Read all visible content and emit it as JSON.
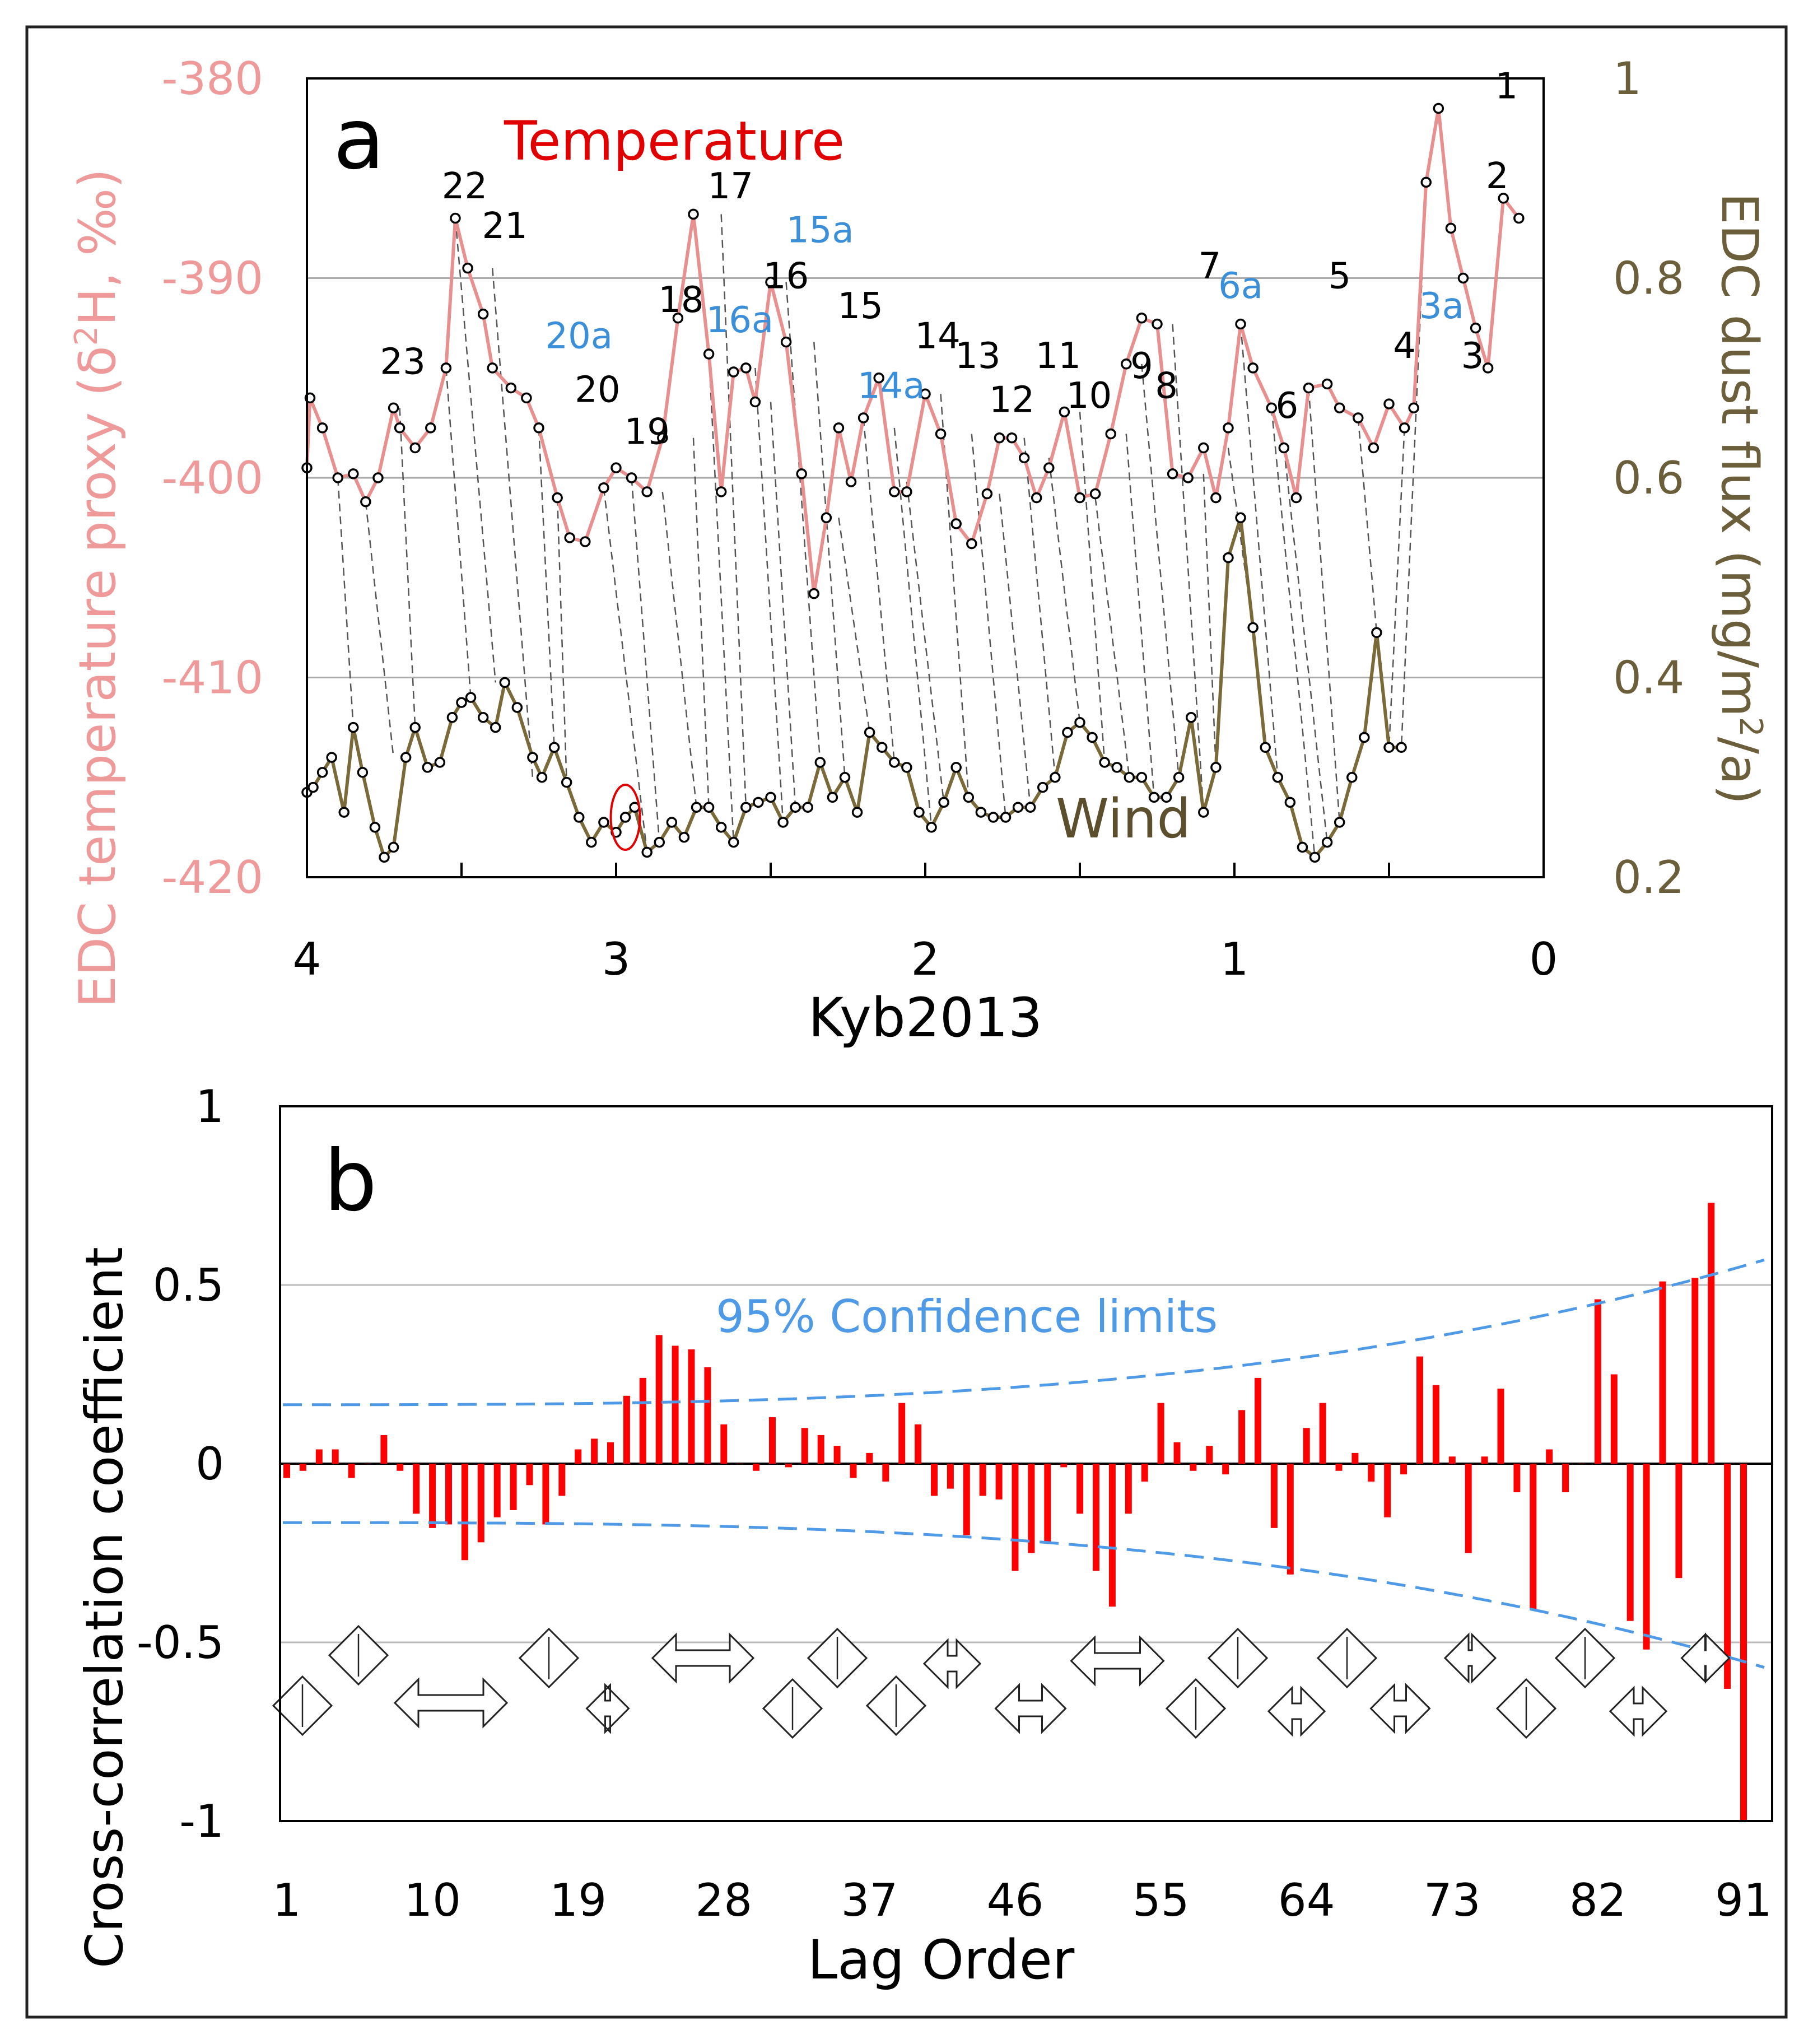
{
  "chart_data": [
    {
      "panel": "a",
      "type": "line",
      "panel_label": "a",
      "xlabel": "Kyb2013",
      "x_ticks": [
        "4",
        "3",
        "2",
        "1",
        "0"
      ],
      "xlim": [
        4,
        0
      ],
      "y_left_label": "EDC temperature proxy (δ²H, ‰)",
      "y_left_ticks": [
        "-380",
        "-390",
        "-400",
        "-410",
        "-420"
      ],
      "ylim_left": [
        -420,
        -380
      ],
      "y_right_label": "EDC dust flux (mg/m²/a)",
      "y_right_ticks": [
        "1",
        "0.8",
        "0.6",
        "0.4",
        "0.2"
      ],
      "ylim_right": [
        0.2,
        1
      ],
      "grid": true,
      "colors": {
        "temperature": "#e89090",
        "wind": "#7a6a3a",
        "marker": "#000000",
        "label_blue": "#3a8fd8",
        "label_black": "#000000",
        "highlight": "#e00000",
        "connector": "#555555",
        "left_axis": "#ef9a9a",
        "right_axis": "#6b5e3a"
      },
      "series": [
        {
          "name": "Temperature",
          "label": "Temperature",
          "axis": "left",
          "x": [
            4.0,
            3.99,
            3.95,
            3.9,
            3.85,
            3.81,
            3.77,
            3.72,
            3.7,
            3.65,
            3.6,
            3.55,
            3.52,
            3.48,
            3.43,
            3.4,
            3.34,
            3.29,
            3.25,
            3.19,
            3.15,
            3.1,
            3.04,
            3.0,
            2.95,
            2.9,
            2.85,
            2.8,
            2.75,
            2.7,
            2.66,
            2.62,
            2.58,
            2.55,
            2.5,
            2.45,
            2.4,
            2.36,
            2.32,
            2.28,
            2.24,
            2.2,
            2.15,
            2.1,
            2.06,
            2.0,
            1.95,
            1.9,
            1.85,
            1.8,
            1.76,
            1.72,
            1.68,
            1.64,
            1.6,
            1.55,
            1.5,
            1.45,
            1.4,
            1.35,
            1.3,
            1.25,
            1.2,
            1.15,
            1.1,
            1.06,
            1.02,
            0.98,
            0.94,
            0.88,
            0.84,
            0.8,
            0.76,
            0.7,
            0.66,
            0.6,
            0.55,
            0.5,
            0.45,
            0.42,
            0.38,
            0.34,
            0.3,
            0.26,
            0.22,
            0.18,
            0.13,
            0.08
          ],
          "y": [
            -399.5,
            -396.0,
            -397.5,
            -400.0,
            -399.8,
            -401.2,
            -400.0,
            -396.5,
            -397.5,
            -398.5,
            -397.5,
            -394.5,
            -387.0,
            -389.5,
            -391.8,
            -394.5,
            -395.5,
            -396.0,
            -397.5,
            -401.0,
            -403.0,
            -403.2,
            -400.5,
            -399.5,
            -400.0,
            -400.7,
            -398.0,
            -392.0,
            -386.8,
            -393.8,
            -400.7,
            -394.7,
            -394.5,
            -396.2,
            -390.2,
            -393.2,
            -399.8,
            -405.8,
            -402.0,
            -397.5,
            -400.2,
            -397.0,
            -395.0,
            -400.7,
            -400.7,
            -395.8,
            -397.8,
            -402.3,
            -403.3,
            -400.8,
            -398.0,
            -398.0,
            -399.0,
            -401.0,
            -399.5,
            -396.7,
            -401.0,
            -400.8,
            -397.8,
            -394.3,
            -392.0,
            -392.3,
            -399.8,
            -400.0,
            -398.5,
            -401.0,
            -397.5,
            -392.3,
            -394.5,
            -396.5,
            -398.5,
            -401.0,
            -395.5,
            -395.3,
            -396.5,
            -397.0,
            -398.5,
            -396.3,
            -397.5,
            -396.5,
            -385.2,
            -381.5,
            -387.5,
            -390.0,
            -392.5,
            -394.5,
            -386.0,
            -387.0
          ]
        },
        {
          "name": "Wind",
          "label": "Wind",
          "axis": "right",
          "x": [
            4.0,
            3.98,
            3.95,
            3.92,
            3.88,
            3.85,
            3.82,
            3.78,
            3.75,
            3.72,
            3.68,
            3.65,
            3.61,
            3.57,
            3.53,
            3.5,
            3.47,
            3.43,
            3.39,
            3.36,
            3.32,
            3.27,
            3.24,
            3.2,
            3.16,
            3.12,
            3.08,
            3.04,
            3.0,
            2.97,
            2.94,
            2.9,
            2.86,
            2.82,
            2.78,
            2.74,
            2.7,
            2.66,
            2.62,
            2.58,
            2.54,
            2.5,
            2.46,
            2.42,
            2.38,
            2.34,
            2.3,
            2.26,
            2.22,
            2.18,
            2.14,
            2.1,
            2.06,
            2.02,
            1.98,
            1.94,
            1.9,
            1.86,
            1.82,
            1.78,
            1.74,
            1.7,
            1.66,
            1.62,
            1.58,
            1.54,
            1.5,
            1.46,
            1.42,
            1.38,
            1.34,
            1.3,
            1.26,
            1.22,
            1.18,
            1.14,
            1.1,
            1.06,
            1.02,
            0.98,
            0.94,
            0.9,
            0.86,
            0.82,
            0.78,
            0.74,
            0.7,
            0.66,
            0.62,
            0.58,
            0.54,
            0.5,
            0.46
          ],
          "y": [
            0.285,
            0.29,
            0.305,
            0.32,
            0.265,
            0.35,
            0.305,
            0.25,
            0.22,
            0.23,
            0.32,
            0.35,
            0.31,
            0.315,
            0.36,
            0.375,
            0.38,
            0.36,
            0.35,
            0.395,
            0.37,
            0.32,
            0.3,
            0.33,
            0.295,
            0.26,
            0.235,
            0.255,
            0.245,
            0.26,
            0.27,
            0.225,
            0.235,
            0.255,
            0.24,
            0.27,
            0.27,
            0.25,
            0.235,
            0.27,
            0.275,
            0.28,
            0.255,
            0.27,
            0.27,
            0.315,
            0.28,
            0.3,
            0.265,
            0.345,
            0.33,
            0.315,
            0.31,
            0.265,
            0.25,
            0.275,
            0.31,
            0.28,
            0.265,
            0.26,
            0.26,
            0.27,
            0.27,
            0.29,
            0.3,
            0.345,
            0.355,
            0.34,
            0.315,
            0.31,
            0.3,
            0.3,
            0.28,
            0.28,
            0.3,
            0.36,
            0.265,
            0.31,
            0.52,
            0.56,
            0.45,
            0.33,
            0.3,
            0.275,
            0.23,
            0.22,
            0.235,
            0.255,
            0.3,
            0.34,
            0.445,
            0.33,
            0.33
          ]
        }
      ],
      "temperature_labels": [
        {
          "text": "1",
          "x": 0.12,
          "y": -381.0,
          "color": "black"
        },
        {
          "text": "2",
          "x": 0.15,
          "y": -385.5,
          "color": "black"
        },
        {
          "text": "3",
          "x": 0.23,
          "y": -394.5,
          "color": "black"
        },
        {
          "text": "3a",
          "x": 0.33,
          "y": -392.0,
          "color": "blue"
        },
        {
          "text": "4",
          "x": 0.45,
          "y": -394.0,
          "color": "black"
        },
        {
          "text": "5",
          "x": 0.66,
          "y": -390.5,
          "color": "black"
        },
        {
          "text": "6",
          "x": 0.83,
          "y": -397.0,
          "color": "black"
        },
        {
          "text": "6a",
          "x": 0.98,
          "y": -391.0,
          "color": "blue"
        },
        {
          "text": "7",
          "x": 1.08,
          "y": -390.0,
          "color": "black"
        },
        {
          "text": "8",
          "x": 1.22,
          "y": -396.0,
          "color": "black"
        },
        {
          "text": "9",
          "x": 1.3,
          "y": -395.0,
          "color": "black"
        },
        {
          "text": "10",
          "x": 1.47,
          "y": -396.5,
          "color": "black"
        },
        {
          "text": "11",
          "x": 1.57,
          "y": -394.5,
          "color": "black"
        },
        {
          "text": "12",
          "x": 1.72,
          "y": -396.7,
          "color": "black"
        },
        {
          "text": "13",
          "x": 1.83,
          "y": -394.5,
          "color": "black"
        },
        {
          "text": "14",
          "x": 1.96,
          "y": -393.5,
          "color": "black"
        },
        {
          "text": "14a",
          "x": 2.11,
          "y": -396.0,
          "color": "blue"
        },
        {
          "text": "15",
          "x": 2.21,
          "y": -392.0,
          "color": "black"
        },
        {
          "text": "15a",
          "x": 2.34,
          "y": -388.2,
          "color": "blue"
        },
        {
          "text": "16",
          "x": 2.45,
          "y": -390.5,
          "color": "black"
        },
        {
          "text": "16a",
          "x": 2.6,
          "y": -392.7,
          "color": "blue"
        },
        {
          "text": "17",
          "x": 2.63,
          "y": -386.0,
          "color": "black"
        },
        {
          "text": "18",
          "x": 2.79,
          "y": -391.7,
          "color": "black"
        },
        {
          "text": "19",
          "x": 2.9,
          "y": -398.3,
          "color": "black"
        },
        {
          "text": "20",
          "x": 3.06,
          "y": -396.2,
          "color": "black"
        },
        {
          "text": "20a",
          "x": 3.12,
          "y": -393.5,
          "color": "blue"
        },
        {
          "text": "21",
          "x": 3.36,
          "y": -388.0,
          "color": "black"
        },
        {
          "text": "22",
          "x": 3.49,
          "y": -386.0,
          "color": "black"
        },
        {
          "text": "23",
          "x": 3.69,
          "y": -394.8,
          "color": "black"
        }
      ],
      "connectors": [
        [
          3.9,
          -400.0,
          3.85,
          0.35
        ],
        [
          3.81,
          -401.2,
          3.72,
          0.32
        ],
        [
          3.7,
          -396.5,
          3.65,
          0.35
        ],
        [
          3.55,
          -394.5,
          3.47,
          0.38
        ],
        [
          3.52,
          -387.0,
          3.39,
          0.395
        ],
        [
          3.4,
          -389.5,
          3.27,
          0.3
        ],
        [
          3.25,
          -397.5,
          3.2,
          0.33
        ],
        [
          3.19,
          -401.0,
          3.16,
          0.295
        ],
        [
          3.04,
          -400.5,
          2.9,
          0.225
        ],
        [
          2.95,
          -400.0,
          2.86,
          0.235
        ],
        [
          2.85,
          -400.7,
          2.74,
          0.27
        ],
        [
          2.75,
          -398.0,
          2.7,
          0.27
        ],
        [
          2.7,
          -393.8,
          2.62,
          0.235
        ],
        [
          2.66,
          -386.8,
          2.58,
          0.27
        ],
        [
          2.55,
          -394.5,
          2.46,
          0.255
        ],
        [
          2.5,
          -396.2,
          2.42,
          0.27
        ],
        [
          2.45,
          -390.2,
          2.34,
          0.315
        ],
        [
          2.36,
          -393.2,
          2.26,
          0.3
        ],
        [
          2.28,
          -402.0,
          2.18,
          0.345
        ],
        [
          2.2,
          -397.0,
          2.1,
          0.315
        ],
        [
          2.1,
          -397.5,
          1.98,
          0.25
        ],
        [
          2.06,
          -400.2,
          1.94,
          0.275
        ],
        [
          1.95,
          -395.8,
          1.86,
          0.28
        ],
        [
          1.85,
          -397.8,
          1.74,
          0.26
        ],
        [
          1.76,
          -400.8,
          1.66,
          0.27
        ],
        [
          1.68,
          -398.0,
          1.58,
          0.3
        ],
        [
          1.6,
          -399.0,
          1.5,
          0.355
        ],
        [
          1.5,
          -396.7,
          1.42,
          0.315
        ],
        [
          1.45,
          -401.0,
          1.34,
          0.3
        ],
        [
          1.35,
          -397.8,
          1.26,
          0.28
        ],
        [
          1.3,
          -394.3,
          1.18,
          0.3
        ],
        [
          1.2,
          -392.3,
          1.1,
          0.265
        ],
        [
          1.1,
          -399.8,
          1.06,
          0.31
        ],
        [
          1.02,
          -398.5,
          0.94,
          0.45
        ],
        [
          0.98,
          -392.3,
          0.86,
          0.3
        ],
        [
          0.88,
          -396.5,
          0.74,
          0.22
        ],
        [
          0.84,
          -398.5,
          0.7,
          0.235
        ],
        [
          0.76,
          -395.5,
          0.66,
          0.255
        ],
        [
          0.6,
          -397.0,
          0.54,
          0.445
        ],
        [
          0.45,
          -397.5,
          0.5,
          0.33
        ],
        [
          0.38,
          -385.2,
          0.46,
          0.33
        ]
      ],
      "highlight_marker": {
        "x": 2.97,
        "y": 0.26
      }
    },
    {
      "panel": "b",
      "type": "bar",
      "panel_label": "b",
      "xlabel": "Lag Order",
      "ylabel": "Cross-correlation coefficient",
      "x_ticks": [
        "1",
        "10",
        "19",
        "28",
        "37",
        "46",
        "55",
        "64",
        "73",
        "82",
        "91"
      ],
      "y_ticks": [
        "1",
        "0.5",
        "0",
        "-0.5",
        "-1"
      ],
      "ylim": [
        -1,
        1
      ],
      "grid": true,
      "colors": {
        "bars": "#ff0000",
        "confidence": "#4f9ae6",
        "grid": "#bbbbbb"
      },
      "lags": [
        1,
        2,
        3,
        4,
        5,
        6,
        7,
        8,
        9,
        10,
        11,
        12,
        13,
        14,
        15,
        16,
        17,
        18,
        19,
        20,
        21,
        22,
        23,
        24,
        25,
        26,
        27,
        28,
        29,
        30,
        31,
        32,
        33,
        34,
        35,
        36,
        37,
        38,
        39,
        40,
        41,
        42,
        43,
        44,
        45,
        46,
        47,
        48,
        49,
        50,
        51,
        52,
        53,
        54,
        55,
        56,
        57,
        58,
        59,
        60,
        61,
        62,
        63,
        64,
        65,
        66,
        67,
        68,
        69,
        70,
        71,
        72,
        73,
        74,
        75,
        76,
        77,
        78,
        79,
        80,
        81,
        82,
        83,
        84,
        85,
        86,
        87,
        88,
        89,
        90,
        91
      ],
      "values": [
        -0.04,
        -0.02,
        0.04,
        0.04,
        -0.04,
        0.0,
        0.08,
        -0.02,
        -0.14,
        -0.18,
        -0.17,
        -0.27,
        -0.22,
        -0.15,
        -0.13,
        -0.06,
        -0.17,
        -0.09,
        0.04,
        0.07,
        0.06,
        0.19,
        0.24,
        0.36,
        0.33,
        0.32,
        0.27,
        0.11,
        0.0,
        -0.02,
        0.13,
        -0.01,
        0.1,
        0.08,
        0.05,
        -0.04,
        0.03,
        -0.05,
        0.17,
        0.11,
        -0.09,
        -0.07,
        -0.2,
        -0.09,
        -0.1,
        -0.3,
        -0.25,
        -0.22,
        -0.01,
        -0.14,
        -0.3,
        -0.4,
        -0.14,
        -0.05,
        0.17,
        0.06,
        -0.02,
        0.05,
        -0.03,
        0.15,
        0.24,
        -0.18,
        -0.31,
        0.1,
        0.17,
        -0.02,
        0.03,
        -0.05,
        -0.15,
        -0.03,
        0.3,
        0.22,
        0.02,
        -0.25,
        0.02,
        0.21,
        -0.08,
        -0.41,
        0.04,
        -0.08,
        0.0,
        0.46,
        0.25,
        -0.44,
        -0.52,
        0.51,
        -0.32,
        0.52,
        0.73,
        -0.63,
        -1.0
      ],
      "confidence_label": "95% Confidence limits",
      "confidence_upper_ends": [
        0.165,
        0.57
      ]
    }
  ]
}
